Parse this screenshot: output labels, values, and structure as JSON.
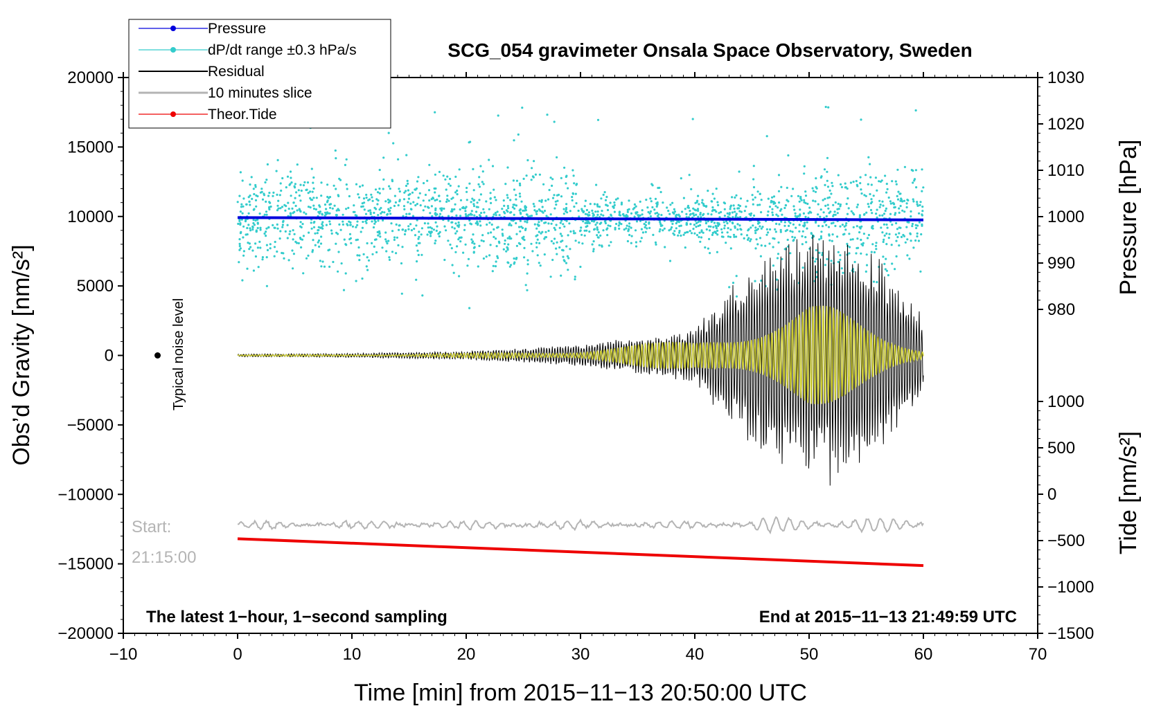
{
  "chart_data": {
    "type": "line",
    "title": "SCG_054 gravimeter Onsala Space Observatory, Sweden",
    "xlabel": "Time [min] from 2015−11−13 20:50:00 UTC",
    "ylabel_left": "Obs’d Gravity [nm/s²]",
    "ylabel_right_top": "Pressure [hPa]",
    "ylabel_right_bottom": "Tide [nm/s²]",
    "xlim": [
      -10,
      70
    ],
    "ylim_left": [
      -20000,
      20000
    ],
    "ylim_pressure": [
      970,
      1030
    ],
    "ylim_tide": [
      -1500,
      1500
    ],
    "x_ticks": [
      -10,
      0,
      10,
      20,
      30,
      40,
      50,
      60,
      70
    ],
    "x_tick_labels": [
      "−10",
      "0",
      "10",
      "20",
      "30",
      "40",
      "50",
      "60",
      "70"
    ],
    "y_left_ticks": [
      20000,
      15000,
      10000,
      5000,
      0,
      -5000,
      -10000,
      -15000,
      -20000
    ],
    "y_left_tick_labels": [
      "20000",
      "15000",
      "10000",
      "5000",
      "0",
      "−5000",
      "−10000",
      "−15000",
      "−20000"
    ],
    "pressure_ticks": [
      1030,
      1020,
      1010,
      1000,
      990,
      980
    ],
    "pressure_tick_labels": [
      "1030",
      "1020",
      "1010",
      "1000",
      "990",
      "980"
    ],
    "tide_ticks": [
      1000,
      500,
      0,
      -500,
      -1000,
      -1500
    ],
    "tide_tick_labels": [
      "1000",
      "500",
      "0",
      "−500",
      "−1000",
      "−1500"
    ],
    "legend": [
      {
        "name": "Pressure",
        "color": "#0000dd",
        "marker": true
      },
      {
        "name": "dP/dt range ±0.3 hPa/s",
        "color": "#33cccc",
        "marker": true
      },
      {
        "name": "Residual",
        "color": "#000000",
        "marker": false
      },
      {
        "name": "10 minutes slice",
        "color": "#b4b4b4",
        "marker": false
      },
      {
        "name": "Theor.Tide",
        "color": "#ee0000",
        "marker": true
      }
    ],
    "series": [
      {
        "name": "Pressure",
        "axis": "pressure",
        "x": [
          0,
          60
        ],
        "values": [
          999.8,
          999.3
        ],
        "color": "#0000dd"
      },
      {
        "name": "Theor.Tide",
        "axis": "tide",
        "x": [
          0,
          60
        ],
        "values": [
          -480,
          -770
        ],
        "color": "#ee0000"
      },
      {
        "name": "dP/dt range ±0.3 hPa/s",
        "axis": "left",
        "type": "scatter",
        "center": 9800,
        "color": "#33cccc"
      },
      {
        "name": "Residual",
        "axis": "left",
        "x": [
          0,
          10,
          20,
          30,
          40,
          45,
          50,
          52,
          55,
          57,
          60
        ],
        "envelope": [
          100,
          150,
          300,
          800,
          2000,
          7000,
          9000,
          9500,
          8000,
          6500,
          3000
        ],
        "color": "#000000"
      },
      {
        "name": "Filtered residual",
        "axis": "left",
        "x": [
          0,
          10,
          20,
          30,
          40,
          45,
          50,
          52,
          55,
          57,
          60
        ],
        "envelope": [
          50,
          80,
          150,
          400,
          1200,
          2800,
          4000,
          3500,
          2200,
          1500,
          600
        ],
        "color": "#cccc33"
      },
      {
        "name": "10 minutes slice",
        "axis": "left",
        "x": [
          0,
          60
        ],
        "center": -12200,
        "color": "#b4b4b4"
      }
    ],
    "noise_marker": {
      "x": -7,
      "y": 0
    },
    "annotations": {
      "typical_noise": "Typical noise level",
      "slice_start_label": "Start:",
      "slice_start_time": "21:15:00",
      "sampling_note": "The latest 1−hour, 1−second sampling",
      "end_note": "End at 2015−11−13 21:49:59 UTC"
    }
  }
}
